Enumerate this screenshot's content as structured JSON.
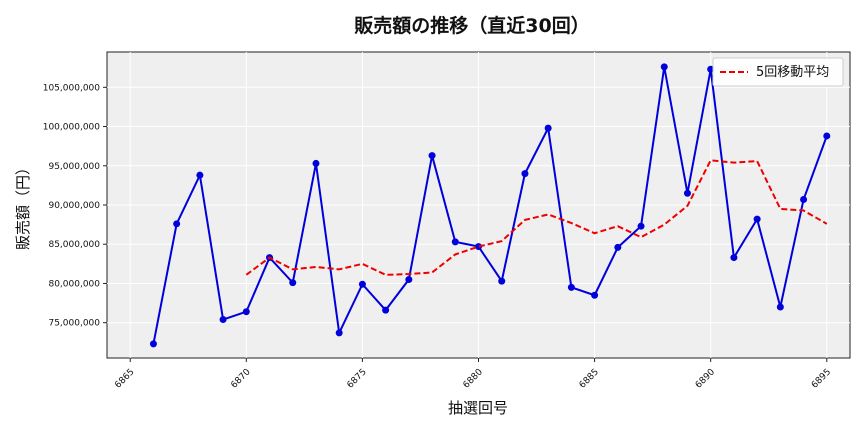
{
  "chart_data": {
    "type": "line",
    "title": "販売額の推移（直近30回）",
    "xlabel": "抽選回号",
    "ylabel": "販売額（円）",
    "xlim": [
      6864,
      6896
    ],
    "ylim": [
      70500000,
      109500000
    ],
    "x_ticks": [
      6865,
      6870,
      6875,
      6880,
      6885,
      6890,
      6895
    ],
    "y_ticks": [
      75000000,
      80000000,
      85000000,
      90000000,
      95000000,
      100000000,
      105000000
    ],
    "y_tick_labels": [
      "75,000,000",
      "80,000,000",
      "85,000,000",
      "90,000,000",
      "95,000,000",
      "100,000,000",
      "105,000,000"
    ],
    "grid": true,
    "legend": "upper-right",
    "x": [
      6866,
      6867,
      6868,
      6869,
      6870,
      6871,
      6872,
      6873,
      6874,
      6875,
      6876,
      6877,
      6878,
      6879,
      6880,
      6881,
      6882,
      6883,
      6884,
      6885,
      6886,
      6887,
      6888,
      6889,
      6890,
      6891,
      6892,
      6893,
      6894,
      6895
    ],
    "series": [
      {
        "name": "",
        "color": "#0000dd",
        "style": "solid-markers",
        "values": [
          72300000,
          87600000,
          93800000,
          75400000,
          76400000,
          83300000,
          80100000,
          95300000,
          73700000,
          79900000,
          76600000,
          80500000,
          96300000,
          85300000,
          84700000,
          80300000,
          94000000,
          99800000,
          79500000,
          78500000,
          84600000,
          87300000,
          107600000,
          91500000,
          107300000,
          83300000,
          88200000,
          77000000,
          90700000,
          98800000
        ]
      },
      {
        "name": "5回移動平均",
        "color": "#ee0000",
        "style": "dashed",
        "values": [
          null,
          null,
          null,
          null,
          81100000,
          83300000,
          81800000,
          82100000,
          81800000,
          82500000,
          81100000,
          81200000,
          81400000,
          83700000,
          84700000,
          85400000,
          88100000,
          88800000,
          87700000,
          86400000,
          87300000,
          85900000,
          87500000,
          89900000,
          95700000,
          95400000,
          95600000,
          89500000,
          89300000,
          87600000
        ]
      }
    ]
  }
}
